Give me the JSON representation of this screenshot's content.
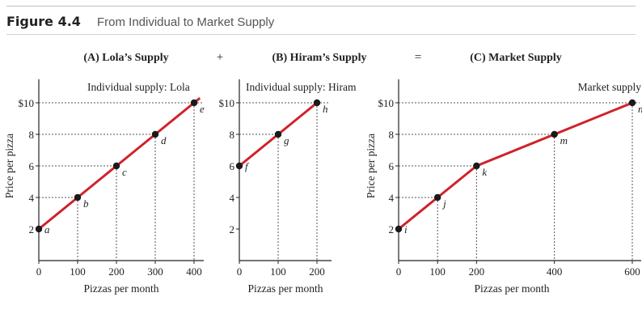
{
  "figure": {
    "label": "Figure 4.4",
    "title": "From Individual to Market Supply"
  },
  "operators": [
    "+",
    "="
  ],
  "ylabel": "Price per pizza",
  "colors": {
    "curve": "#d0212a",
    "point": "#1a1a1a",
    "axis": "#222222",
    "guide": "#555555"
  },
  "chart_data": [
    {
      "type": "line",
      "panel_title": "(A) Lola’s Supply",
      "curve_label": "Individual supply: Lola",
      "xlabel": "Pizzas per month",
      "ylabel": "Price per pizza",
      "xlim": [
        0,
        420
      ],
      "ylim": [
        0,
        11
      ],
      "x_ticks": [
        0,
        100,
        200,
        300,
        400
      ],
      "x_tick_labels": [
        "0",
        "100",
        "200",
        "300",
        "400"
      ],
      "y_ticks": [
        2,
        4,
        6,
        8,
        10
      ],
      "y_tick_labels": [
        "2",
        "4",
        "6",
        "8",
        "$10"
      ],
      "points": [
        {
          "label": "a",
          "x": 0,
          "y": 2
        },
        {
          "label": "b",
          "x": 100,
          "y": 4
        },
        {
          "label": "c",
          "x": 200,
          "y": 6
        },
        {
          "label": "d",
          "x": 300,
          "y": 8
        },
        {
          "label": "e",
          "x": 400,
          "y": 10
        }
      ]
    },
    {
      "type": "line",
      "panel_title": "(B) Hiram’s Supply",
      "curve_label": "Individual supply: Hiram",
      "xlabel": "Pizzas per month",
      "ylabel": "",
      "xlim": [
        0,
        250
      ],
      "ylim": [
        0,
        11
      ],
      "x_ticks": [
        0,
        100,
        200
      ],
      "x_tick_labels": [
        "0",
        "100",
        "200"
      ],
      "y_ticks": [
        2,
        4,
        6,
        8,
        10
      ],
      "y_tick_labels": [
        "2",
        "4",
        "6",
        "8",
        "$10"
      ],
      "points": [
        {
          "label": "f",
          "x": 0,
          "y": 6
        },
        {
          "label": "g",
          "x": 100,
          "y": 8
        },
        {
          "label": "h",
          "x": 200,
          "y": 10
        }
      ]
    },
    {
      "type": "line",
      "panel_title": "(C) Market Supply",
      "curve_label": "Market supply",
      "xlabel": "Pizzas per month",
      "ylabel": "Price per pizza",
      "xlim": [
        0,
        620
      ],
      "ylim": [
        0,
        11
      ],
      "x_ticks": [
        0,
        100,
        200,
        400,
        600
      ],
      "x_tick_labels": [
        "0",
        "100",
        "200",
        "400",
        "600"
      ],
      "y_ticks": [
        2,
        4,
        6,
        8,
        10
      ],
      "y_tick_labels": [
        "2",
        "4",
        "6",
        "8",
        "$10"
      ],
      "points": [
        {
          "label": "i",
          "x": 0,
          "y": 2
        },
        {
          "label": "j",
          "x": 100,
          "y": 4
        },
        {
          "label": "k",
          "x": 200,
          "y": 6
        },
        {
          "label": "m",
          "x": 400,
          "y": 8
        },
        {
          "label": "n",
          "x": 600,
          "y": 10
        }
      ]
    }
  ]
}
